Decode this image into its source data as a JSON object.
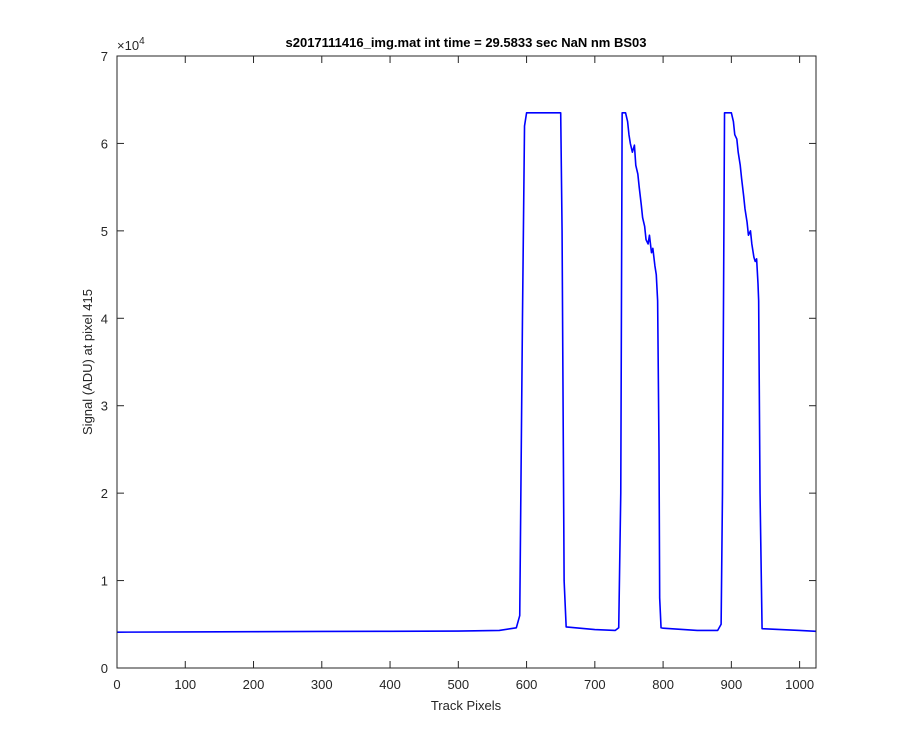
{
  "chart_data": {
    "type": "line",
    "title": "s2017111416_img.mat int time = 29.5833 sec  NaN nm BS03",
    "xlabel": "Track Pixels",
    "ylabel": "Signal (ADU) at pixel 415",
    "exponent_base": "×10",
    "exponent_power": "4",
    "xlim": [
      0,
      1024
    ],
    "ylim": [
      0,
      70000
    ],
    "x_ticks": [
      0,
      100,
      200,
      300,
      400,
      500,
      600,
      700,
      800,
      900,
      1000
    ],
    "x_tick_labels": [
      "0",
      "100",
      "200",
      "300",
      "400",
      "500",
      "600",
      "700",
      "800",
      "900",
      "1000"
    ],
    "y_ticks": [
      0,
      10000,
      20000,
      30000,
      40000,
      50000,
      60000,
      70000
    ],
    "y_tick_labels": [
      "0",
      "1",
      "2",
      "3",
      "4",
      "5",
      "6",
      "7"
    ],
    "grid": false,
    "line_color": "#0000ff",
    "series": [
      {
        "x": [
          0,
          100,
          200,
          300,
          400,
          500,
          560,
          585,
          590,
          594,
          597,
          600,
          650,
          652,
          655,
          658,
          700,
          730,
          735,
          738,
          740,
          745,
          748,
          750,
          752,
          755,
          758,
          760,
          763,
          765,
          768,
          770,
          773,
          775,
          778,
          780,
          783,
          785,
          788,
          790,
          792,
          794,
          795,
          797,
          800,
          850,
          880,
          885,
          887,
          890,
          895,
          900,
          903,
          905,
          908,
          910,
          913,
          915,
          918,
          920,
          923,
          925,
          928,
          930,
          933,
          935,
          937,
          939,
          940,
          942,
          945,
          1000,
          1024
        ],
        "y": [
          4100,
          4120,
          4150,
          4180,
          4200,
          4220,
          4300,
          4600,
          6000,
          40000,
          62000,
          63500,
          63500,
          50000,
          10000,
          4700,
          4400,
          4300,
          4600,
          20000,
          63500,
          63500,
          62500,
          61000,
          60000,
          59000,
          59800,
          57500,
          56500,
          55000,
          53000,
          51500,
          50500,
          49000,
          48500,
          49500,
          47500,
          48000,
          46000,
          45000,
          42000,
          25000,
          8000,
          4600,
          4550,
          4300,
          4300,
          5000,
          20000,
          63500,
          63500,
          63500,
          62500,
          61000,
          60500,
          59000,
          57500,
          56000,
          54000,
          52500,
          51000,
          49500,
          50000,
          48500,
          47000,
          46500,
          46800,
          44000,
          42000,
          20000,
          4500,
          4300,
          4200
        ]
      }
    ]
  }
}
